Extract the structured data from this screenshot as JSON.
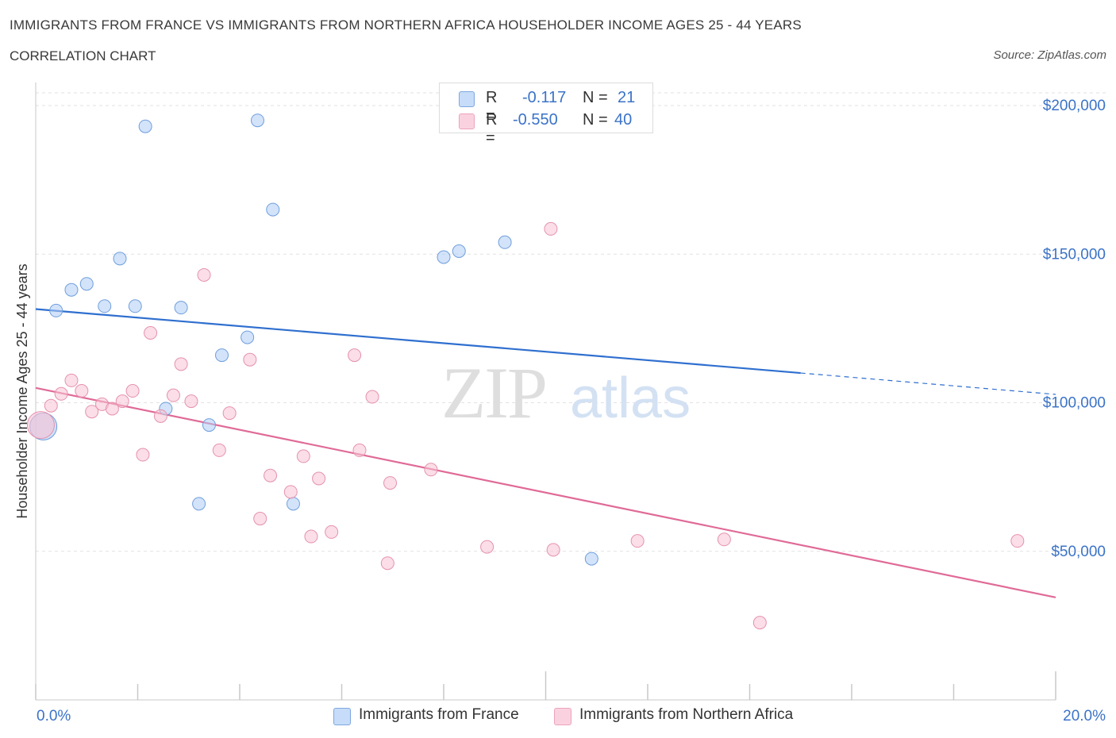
{
  "header": {
    "title": "IMMIGRANTS FROM FRANCE VS IMMIGRANTS FROM NORTHERN AFRICA HOUSEHOLDER INCOME AGES 25 - 44 YEARS",
    "subtitle": "CORRELATION CHART",
    "source": "Source: ZipAtlas.com"
  },
  "watermark": {
    "zip": "ZIP",
    "atlas": "atlas"
  },
  "legend": {
    "rows": [
      {
        "r_label": "R =",
        "r_value": "-0.117",
        "n_label": "N =",
        "n_value": "21",
        "color": "#aeccf5"
      },
      {
        "r_label": "R =",
        "r_value": "-0.550",
        "n_label": "N =",
        "n_value": "40",
        "color": "#f8c2d3"
      }
    ]
  },
  "bottom_legend": [
    {
      "label": "Immigrants from France",
      "color": "#aeccf5"
    },
    {
      "label": "Immigrants from Northern Africa",
      "color": "#f8c2d3"
    }
  ],
  "chart_data": {
    "type": "scatter",
    "title": "IMMIGRANTS FROM FRANCE VS IMMIGRANTS FROM NORTHERN AFRICA HOUSEHOLDER INCOME AGES 25 - 44 YEARS",
    "xlabel": "",
    "ylabel": "Householder Income Ages 25 - 44 years",
    "xlim": [
      0,
      20
    ],
    "ylim": [
      0,
      215000
    ],
    "x_tick_labels": [
      "0.0%",
      "20.0%"
    ],
    "y_ticks": [
      50000,
      100000,
      150000,
      200000
    ],
    "y_tick_labels": [
      "$50,000",
      "$100,000",
      "$150,000",
      "$200,000"
    ],
    "grid": true,
    "series": [
      {
        "name": "Immigrants from France",
        "color": "#aeccf5",
        "stroke": "#6f9fdc",
        "line_color": "#2f6fcf",
        "trend": {
          "x0": 0,
          "y0": 131500,
          "x1": 15.0,
          "y1": 110000,
          "dash_to_x": 20,
          "dash_to_y": 102800
        },
        "points": [
          {
            "x": 0.15,
            "y": 92000,
            "big": true
          },
          {
            "x": 0.4,
            "y": 131000
          },
          {
            "x": 0.7,
            "y": 138000
          },
          {
            "x": 1.0,
            "y": 140000
          },
          {
            "x": 1.35,
            "y": 132500
          },
          {
            "x": 1.65,
            "y": 148500
          },
          {
            "x": 1.95,
            "y": 132500
          },
          {
            "x": 2.15,
            "y": 193000
          },
          {
            "x": 2.55,
            "y": 98000
          },
          {
            "x": 2.85,
            "y": 132000
          },
          {
            "x": 3.2,
            "y": 66000
          },
          {
            "x": 3.4,
            "y": 92500
          },
          {
            "x": 3.65,
            "y": 116000
          },
          {
            "x": 4.15,
            "y": 122000
          },
          {
            "x": 4.35,
            "y": 195000
          },
          {
            "x": 4.65,
            "y": 165000
          },
          {
            "x": 5.05,
            "y": 66000
          },
          {
            "x": 8.0,
            "y": 149000
          },
          {
            "x": 8.3,
            "y": 151000
          },
          {
            "x": 9.2,
            "y": 154000
          },
          {
            "x": 10.9,
            "y": 47500
          }
        ]
      },
      {
        "name": "Immigrants from Northern Africa",
        "color": "#f8c2d3",
        "stroke": "#e592ad",
        "line_color": "#e06a97",
        "trend": {
          "x0": 0,
          "y0": 105000,
          "x1": 20,
          "y1": 34500
        },
        "points": [
          {
            "x": 0.1,
            "y": 92500,
            "big": true
          },
          {
            "x": 0.3,
            "y": 99000
          },
          {
            "x": 0.5,
            "y": 103000
          },
          {
            "x": 0.7,
            "y": 107500
          },
          {
            "x": 0.9,
            "y": 104000
          },
          {
            "x": 1.1,
            "y": 97000
          },
          {
            "x": 1.3,
            "y": 99500
          },
          {
            "x": 1.5,
            "y": 98000
          },
          {
            "x": 1.7,
            "y": 100500
          },
          {
            "x": 1.9,
            "y": 104000
          },
          {
            "x": 2.1,
            "y": 82500
          },
          {
            "x": 2.25,
            "y": 123500
          },
          {
            "x": 2.45,
            "y": 95500
          },
          {
            "x": 2.7,
            "y": 102500
          },
          {
            "x": 2.85,
            "y": 113000
          },
          {
            "x": 3.05,
            "y": 100500
          },
          {
            "x": 3.3,
            "y": 143000
          },
          {
            "x": 3.6,
            "y": 84000
          },
          {
            "x": 3.8,
            "y": 96500
          },
          {
            "x": 4.2,
            "y": 114500
          },
          {
            "x": 4.4,
            "y": 61000
          },
          {
            "x": 4.6,
            "y": 75500
          },
          {
            "x": 5.0,
            "y": 70000
          },
          {
            "x": 5.25,
            "y": 82000
          },
          {
            "x": 5.4,
            "y": 55000
          },
          {
            "x": 5.55,
            "y": 74500
          },
          {
            "x": 5.8,
            "y": 56500
          },
          {
            "x": 6.25,
            "y": 116000
          },
          {
            "x": 6.35,
            "y": 84000
          },
          {
            "x": 6.6,
            "y": 102000
          },
          {
            "x": 6.9,
            "y": 46000
          },
          {
            "x": 6.95,
            "y": 73000
          },
          {
            "x": 7.75,
            "y": 77500
          },
          {
            "x": 8.85,
            "y": 51500
          },
          {
            "x": 10.1,
            "y": 158500
          },
          {
            "x": 10.15,
            "y": 50500
          },
          {
            "x": 11.8,
            "y": 53500
          },
          {
            "x": 13.5,
            "y": 54000
          },
          {
            "x": 14.2,
            "y": 26000
          },
          {
            "x": 19.25,
            "y": 53500
          }
        ]
      }
    ]
  }
}
